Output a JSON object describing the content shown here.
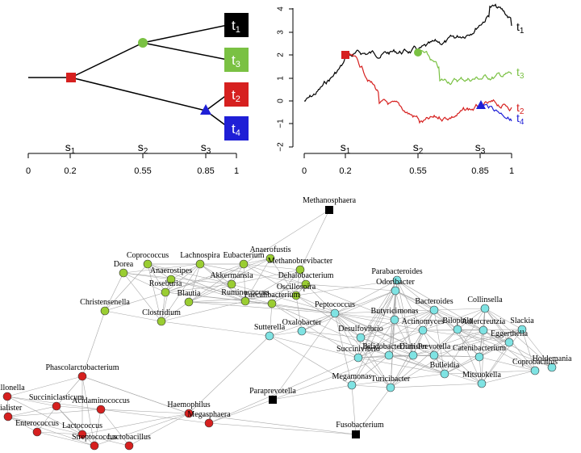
{
  "tree": {
    "tip_labels": [
      {
        "base": "t",
        "sub": "1",
        "color": "#000000"
      },
      {
        "base": "t",
        "sub": "3",
        "color": "#7ac143"
      },
      {
        "base": "t",
        "sub": "2",
        "color": "#d6201f"
      },
      {
        "base": "t",
        "sub": "4",
        "color": "#1f1fd6"
      }
    ],
    "split_labels": [
      {
        "base": "s",
        "sub": "1"
      },
      {
        "base": "s",
        "sub": "2"
      },
      {
        "base": "s",
        "sub": "3"
      }
    ],
    "axis_ticks": [
      "0",
      "0.2",
      "0.55",
      "0.85",
      "1"
    ]
  },
  "walk_chart": {
    "y_ticks": [
      "4",
      "3",
      "2",
      "1",
      "0",
      "−1",
      "−2"
    ],
    "x_ticks": [
      "0",
      "0.2",
      "0.55",
      "0.85",
      "1"
    ],
    "split_labels": [
      {
        "base": "s",
        "sub": "1"
      },
      {
        "base": "s",
        "sub": "2"
      },
      {
        "base": "s",
        "sub": "3"
      }
    ],
    "series_labels": [
      {
        "base": "t",
        "sub": "1",
        "color": "#000000"
      },
      {
        "base": "t",
        "sub": "3",
        "color": "#7ac143"
      },
      {
        "base": "t",
        "sub": "2",
        "color": "#d6201f"
      },
      {
        "base": "t",
        "sub": "4",
        "color": "#1f1fd6"
      }
    ]
  },
  "network": {
    "colors": {
      "green": "#9acd32",
      "cyan": "#7fe3e3",
      "red": "#d6201f",
      "black": "#000000"
    },
    "nodes": [
      {
        "label": "Methanosphaera",
        "group": "black"
      },
      {
        "label": "Coprococcus",
        "group": "green"
      },
      {
        "label": "Lachnospira",
        "group": "green"
      },
      {
        "label": "Eubacterium",
        "group": "green"
      },
      {
        "label": "Anaerofustis",
        "group": "green"
      },
      {
        "label": "Methanobrevibacter",
        "group": "green"
      },
      {
        "label": "Dorea",
        "group": "green"
      },
      {
        "label": "Anaerostipes",
        "group": "green"
      },
      {
        "label": "Akkermansia",
        "group": "green"
      },
      {
        "label": "Dehalobacterium",
        "group": "green"
      },
      {
        "label": "Roseburia",
        "group": "green"
      },
      {
        "label": "Blautia",
        "group": "green"
      },
      {
        "label": "Oscillospira",
        "group": "green"
      },
      {
        "label": "Ruminococcus",
        "group": "green"
      },
      {
        "label": "Faecalibacterium",
        "group": "green"
      },
      {
        "label": "Christensenella",
        "group": "green"
      },
      {
        "label": "Clostridium",
        "group": "green"
      },
      {
        "label": "Parabacteroides",
        "group": "cyan"
      },
      {
        "label": "Odoribacter",
        "group": "cyan"
      },
      {
        "label": "Bacteroides",
        "group": "cyan"
      },
      {
        "label": "Collinsella",
        "group": "cyan"
      },
      {
        "label": "Peptococcus",
        "group": "cyan"
      },
      {
        "label": "Butyricimonas",
        "group": "cyan"
      },
      {
        "label": "Slackia",
        "group": "cyan"
      },
      {
        "label": "Actinomyces",
        "group": "cyan"
      },
      {
        "label": "Bilophila",
        "group": "cyan"
      },
      {
        "label": "Adlercreutzia",
        "group": "cyan"
      },
      {
        "label": "Sutterella",
        "group": "cyan"
      },
      {
        "label": "Oxalobacter",
        "group": "cyan"
      },
      {
        "label": "Desulfovibrio",
        "group": "cyan"
      },
      {
        "label": "Eggerthella",
        "group": "cyan"
      },
      {
        "label": "Bifidobacterium",
        "group": "cyan"
      },
      {
        "label": "Dialister",
        "group": "cyan"
      },
      {
        "label": "Prevotella",
        "group": "cyan"
      },
      {
        "label": "Catenibacterium",
        "group": "cyan"
      },
      {
        "label": "Holdemania",
        "group": "cyan"
      },
      {
        "label": "Succinivibrio",
        "group": "cyan"
      },
      {
        "label": "Coprobacillus",
        "group": "cyan"
      },
      {
        "label": "Megamonas",
        "group": "cyan"
      },
      {
        "label": "Bulleidia",
        "group": "cyan"
      },
      {
        "label": "Mitsuokella",
        "group": "cyan"
      },
      {
        "label": "Turicibacter",
        "group": "cyan"
      },
      {
        "label": "Phascolarctobacterium",
        "group": "red"
      },
      {
        "label": "Veillonella",
        "group": "red"
      },
      {
        "label": "Succiniclasticum",
        "group": "red"
      },
      {
        "label": "Acidaminococcus",
        "group": "red"
      },
      {
        "label": "Haemophilus",
        "group": "red"
      },
      {
        "label": "Paraprevotella",
        "group": "black"
      },
      {
        "label": "Dialister",
        "group": "red"
      },
      {
        "label": "Megasphaera",
        "group": "red"
      },
      {
        "label": "Enterococcus",
        "group": "red"
      },
      {
        "label": "Lactococcus",
        "group": "red"
      },
      {
        "label": "Streptococcus",
        "group": "red"
      },
      {
        "label": "Lactobacillus",
        "group": "red"
      },
      {
        "label": "Fusobacterium",
        "group": "black"
      }
    ]
  }
}
